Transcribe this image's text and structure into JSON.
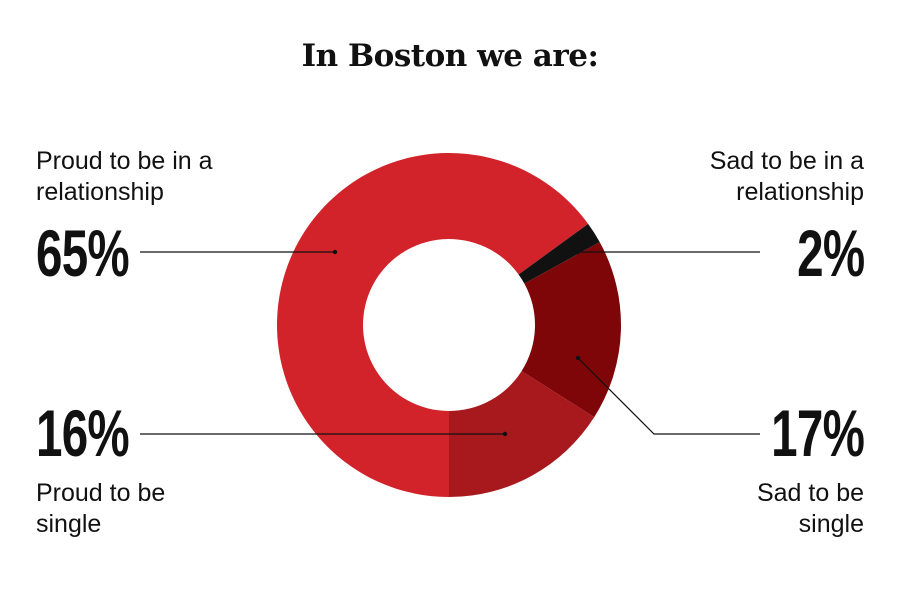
{
  "title": "In Boston we are:",
  "chart_data": {
    "type": "pie",
    "title": "In Boston we are:",
    "donut": true,
    "slices": [
      {
        "label": "Proud to be in a relationship",
        "value": 65,
        "display": "65%",
        "color": "#d2232a"
      },
      {
        "label": "Sad to be in a relationship",
        "value": 2,
        "display": "2%",
        "color": "#111111"
      },
      {
        "label": "Sad to be single",
        "value": 17,
        "display": "17%",
        "color": "#7e0608"
      },
      {
        "label": "Proud to be single",
        "value": 16,
        "display": "16%",
        "color": "#a8191e"
      }
    ]
  },
  "callouts": {
    "proud_relationship": {
      "label": "Proud to be in a\nrelationship",
      "pct": "65%"
    },
    "sad_relationship": {
      "label": "Sad to be in a\nrelationship",
      "pct": "2%"
    },
    "proud_single": {
      "label": "Proud to be\nsingle",
      "pct": "16%"
    },
    "sad_single": {
      "label": "Sad to be\nsingle",
      "pct": "17%"
    }
  }
}
